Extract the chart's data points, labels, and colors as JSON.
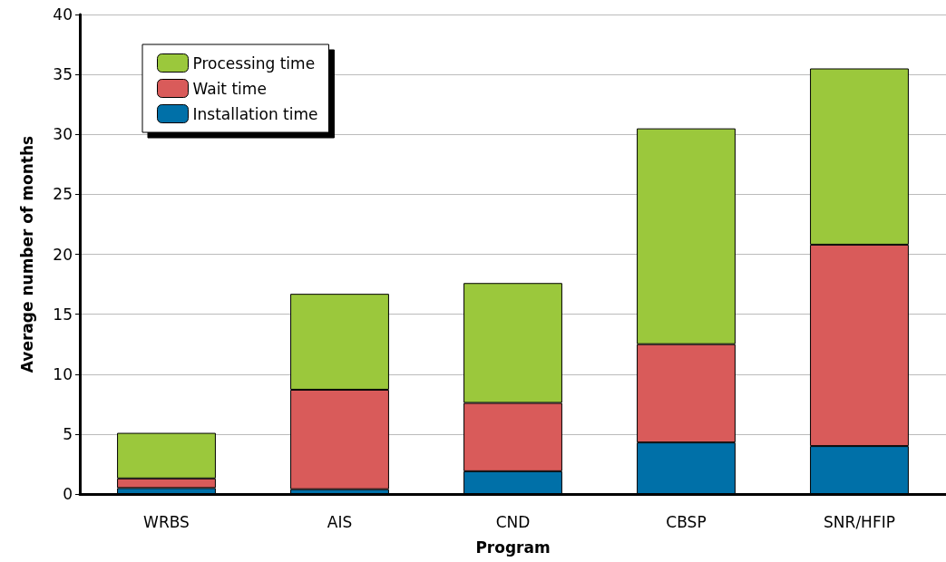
{
  "chart_data": {
    "type": "bar",
    "stacked": true,
    "xlabel": "Program",
    "ylabel": "Average number of months",
    "categories": [
      "WRBS",
      "AIS",
      "CND",
      "CBSP",
      "SNR/HFIP"
    ],
    "series": [
      {
        "name": "Installation time",
        "color": "#0070a8",
        "values": [
          0.5,
          0.4,
          1.9,
          4.3,
          4.0
        ]
      },
      {
        "name": "Wait time",
        "color": "#d95b5a",
        "values": [
          0.8,
          8.3,
          5.7,
          8.2,
          16.8
        ]
      },
      {
        "name": "Processing time",
        "color": "#9bc83c",
        "values": [
          3.8,
          8.0,
          10.0,
          18.0,
          14.7
        ]
      }
    ],
    "ylim": [
      0,
      40
    ],
    "yticks": [
      0,
      5,
      10,
      15,
      20,
      25,
      30,
      35,
      40
    ],
    "grid": "y",
    "legend": "top left"
  }
}
